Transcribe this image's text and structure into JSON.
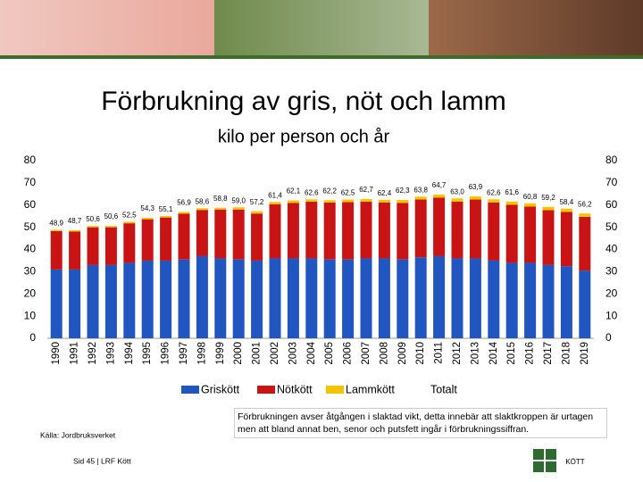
{
  "chart_data": {
    "type": "stacked-bar",
    "title": "Förbrukning av gris, nöt och lamm",
    "subtitle": "kilo per person och år",
    "categories": [
      "1990",
      "1991",
      "1992",
      "1993",
      "1994",
      "1995",
      "1996",
      "1997",
      "1998",
      "1999",
      "2000",
      "2001",
      "2002",
      "2003",
      "2004",
      "2005",
      "2006",
      "2007",
      "2008",
      "2009",
      "2010",
      "2011",
      "2012",
      "2013",
      "2014",
      "2015",
      "2016",
      "2017",
      "2018",
      "2019"
    ],
    "series": [
      {
        "name": "Griskött",
        "color": "#2156c0",
        "values": [
          31,
          31,
          33,
          33,
          34,
          35,
          35,
          35.5,
          37,
          36,
          35.5,
          35,
          36,
          36,
          36,
          35.5,
          35.5,
          36,
          36,
          35.5,
          36.5,
          37,
          36,
          36,
          35,
          34,
          34,
          33,
          32.5,
          30.5
        ]
      },
      {
        "name": "Nötkött",
        "color": "#c81414",
        "values": [
          17.3,
          17.1,
          17.0,
          17.0,
          17.8,
          18.6,
          19.4,
          20.6,
          20.8,
          22.0,
          22.5,
          21.2,
          24.4,
          25.0,
          25.5,
          25.6,
          25.8,
          25.5,
          25.2,
          25.5,
          26.0,
          26.4,
          25.6,
          26.5,
          26.2,
          26.1,
          25.3,
          24.7,
          24.4,
          24.2
        ]
      },
      {
        "name": "Lammkött",
        "color": "#f5c400",
        "values": [
          0.6,
          0.6,
          0.6,
          0.6,
          0.7,
          0.7,
          0.7,
          0.8,
          0.8,
          0.8,
          1.0,
          1.0,
          1.0,
          1.1,
          1.1,
          1.1,
          1.2,
          1.2,
          1.2,
          1.3,
          1.3,
          1.3,
          1.4,
          1.4,
          1.4,
          1.5,
          1.5,
          1.5,
          1.5,
          1.5
        ]
      },
      {
        "name": "Totalt",
        "values": [
          48.9,
          48.7,
          50.6,
          50.6,
          52.5,
          54.3,
          55.1,
          56.9,
          58.6,
          58.8,
          59.0,
          57.2,
          61.4,
          62.1,
          62.6,
          62.2,
          62.5,
          62.7,
          62.4,
          62.3,
          63.8,
          64.7,
          63.0,
          63.9,
          62.6,
          61.6,
          60.8,
          59.2,
          58.4,
          56.2
        ],
        "value_labels": [
          "48,9",
          "48,7",
          "50,6",
          "50,6",
          "52,5",
          "54,3",
          "55,1",
          "56,9",
          "58,6",
          "58,8",
          "59,0",
          "57,2",
          "61,4",
          "62,1",
          "62,6",
          "62,2",
          "62,5",
          "62,7",
          "62,4",
          "62,3",
          "63,8",
          "64,7",
          "63,0",
          "63,9",
          "62,6",
          "61,6",
          "60,8",
          "59,2",
          "58,4",
          "56,2"
        ]
      }
    ],
    "ylim": [
      0,
      80
    ],
    "yticks": [
      0,
      10,
      20,
      30,
      40,
      50,
      60,
      70,
      80
    ],
    "y2lim": [
      0,
      80
    ],
    "y2ticks": [
      0,
      10,
      20,
      30,
      40,
      50,
      60,
      70,
      80
    ],
    "grid": false,
    "source": "Källa: Jordbruksverket",
    "note": "Förbrukningen avser åtgången i slaktad vikt, detta innebär att slaktkroppen är urtagen men att bland annat ben, senor och putsfett ingår i förbrukningssiffran."
  },
  "footer": {
    "page": "Sid 45 | LRF Kött",
    "logo": "KÖTT"
  }
}
